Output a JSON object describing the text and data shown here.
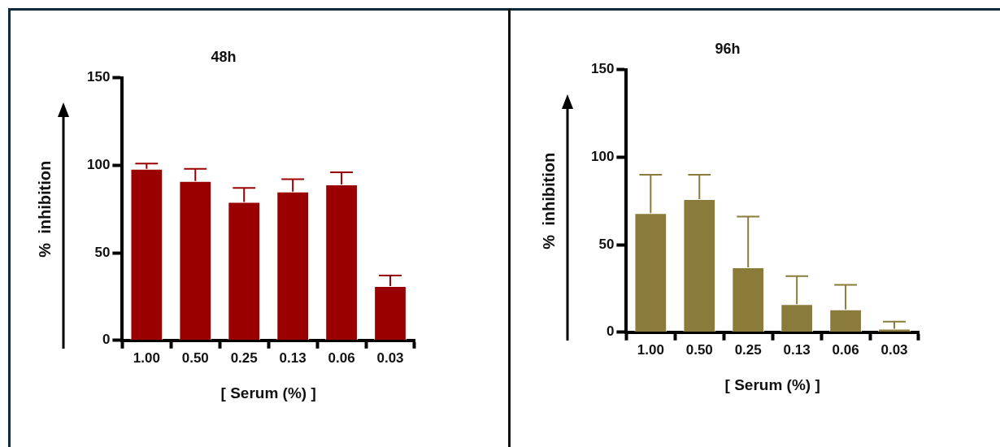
{
  "chart_data": [
    {
      "type": "bar",
      "title": "48h",
      "xlabel": "[ Serum (%) ]",
      "ylabel": "%  inhibition",
      "categories": [
        "1.00",
        "0.50",
        "0.25",
        "0.13",
        "0.06",
        "0.03"
      ],
      "values": [
        98,
        91,
        79,
        85,
        89,
        31
      ],
      "color": "#9b0000",
      "errors": [
        [
          98,
          101
        ],
        [
          91,
          98
        ],
        [
          79,
          87
        ],
        [
          85,
          92
        ],
        [
          89,
          96
        ],
        [
          31,
          37
        ]
      ],
      "ylim": [
        0,
        150
      ],
      "yticks": [
        0,
        50,
        100,
        150
      ]
    },
    {
      "type": "bar",
      "title": "96h",
      "xlabel": "[ Serum (%) ]",
      "ylabel": "%  inhibition",
      "categories": [
        "1.00",
        "0.50",
        "0.25",
        "0.13",
        "0.06",
        "0.03"
      ],
      "values": [
        68,
        76,
        37,
        16,
        13,
        2
      ],
      "color": "#8b7b3a",
      "errors": [
        [
          68,
          90
        ],
        [
          76,
          90
        ],
        [
          37,
          66
        ],
        [
          16,
          32
        ],
        [
          13,
          27
        ],
        [
          2,
          6
        ]
      ],
      "ylim": [
        0,
        150
      ],
      "yticks": [
        0,
        50,
        100,
        150
      ]
    }
  ]
}
